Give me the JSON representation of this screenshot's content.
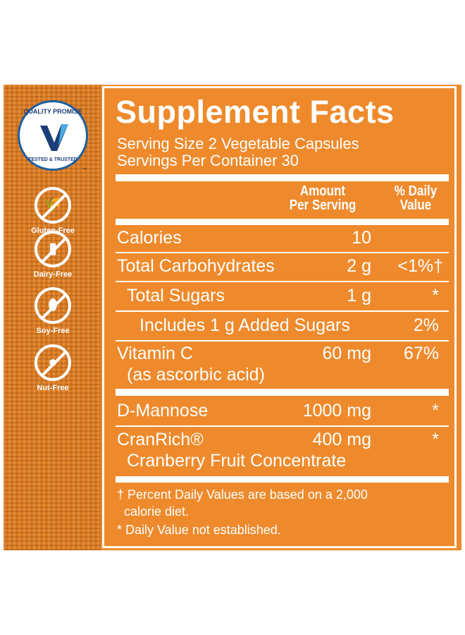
{
  "badge": {
    "top": "QUALITY PROMISE",
    "bottom": "TESTED & TRUSTED",
    "tm": "™",
    "brand_color": "#1c3f7a"
  },
  "free_icons": [
    {
      "icon": "wheat-icon",
      "label": "Gluten-Free"
    },
    {
      "icon": "bottle-icon",
      "label": "Dairy-Free"
    },
    {
      "icon": "soybean-icon",
      "label": "Soy-Free"
    },
    {
      "icon": "peanut-icon",
      "label": "Nut-Free"
    }
  ],
  "facts": {
    "title": "Supplement Facts",
    "serving_size": "Serving Size 2 Vegetable Capsules",
    "servings_per_container": "Servings Per Container 30",
    "header_amount_1": "Amount",
    "header_amount_2": "Per Serving",
    "header_dv_1": "% Daily",
    "header_dv_2": "Value",
    "rows": [
      {
        "name": "Calories",
        "amount": "10",
        "dv": ""
      },
      {
        "name": "Total Carbohydrates",
        "amount": "2 g",
        "dv": "<1%†"
      },
      {
        "name": "Total Sugars",
        "amount": "1 g",
        "dv": "*"
      },
      {
        "name": "Includes 1 g Added Sugars",
        "amount": "",
        "dv": "2%"
      },
      {
        "name": "Vitamin C",
        "name2": "(as ascorbic acid)",
        "amount": "60 mg",
        "dv": "67%"
      },
      {
        "name": "D-Mannose",
        "amount": "1000 mg",
        "dv": "*"
      },
      {
        "name": "CranRich®",
        "name2": "Cranberry Fruit Concentrate",
        "amount": "400 mg",
        "dv": "*"
      }
    ],
    "footnote_1": "† Percent Daily Values are based on a 2,000",
    "footnote_2": "calorie diet.",
    "footnote_3": "* Daily Value not established."
  },
  "colors": {
    "background": "#ee8a2c",
    "text": "#ffffff"
  }
}
